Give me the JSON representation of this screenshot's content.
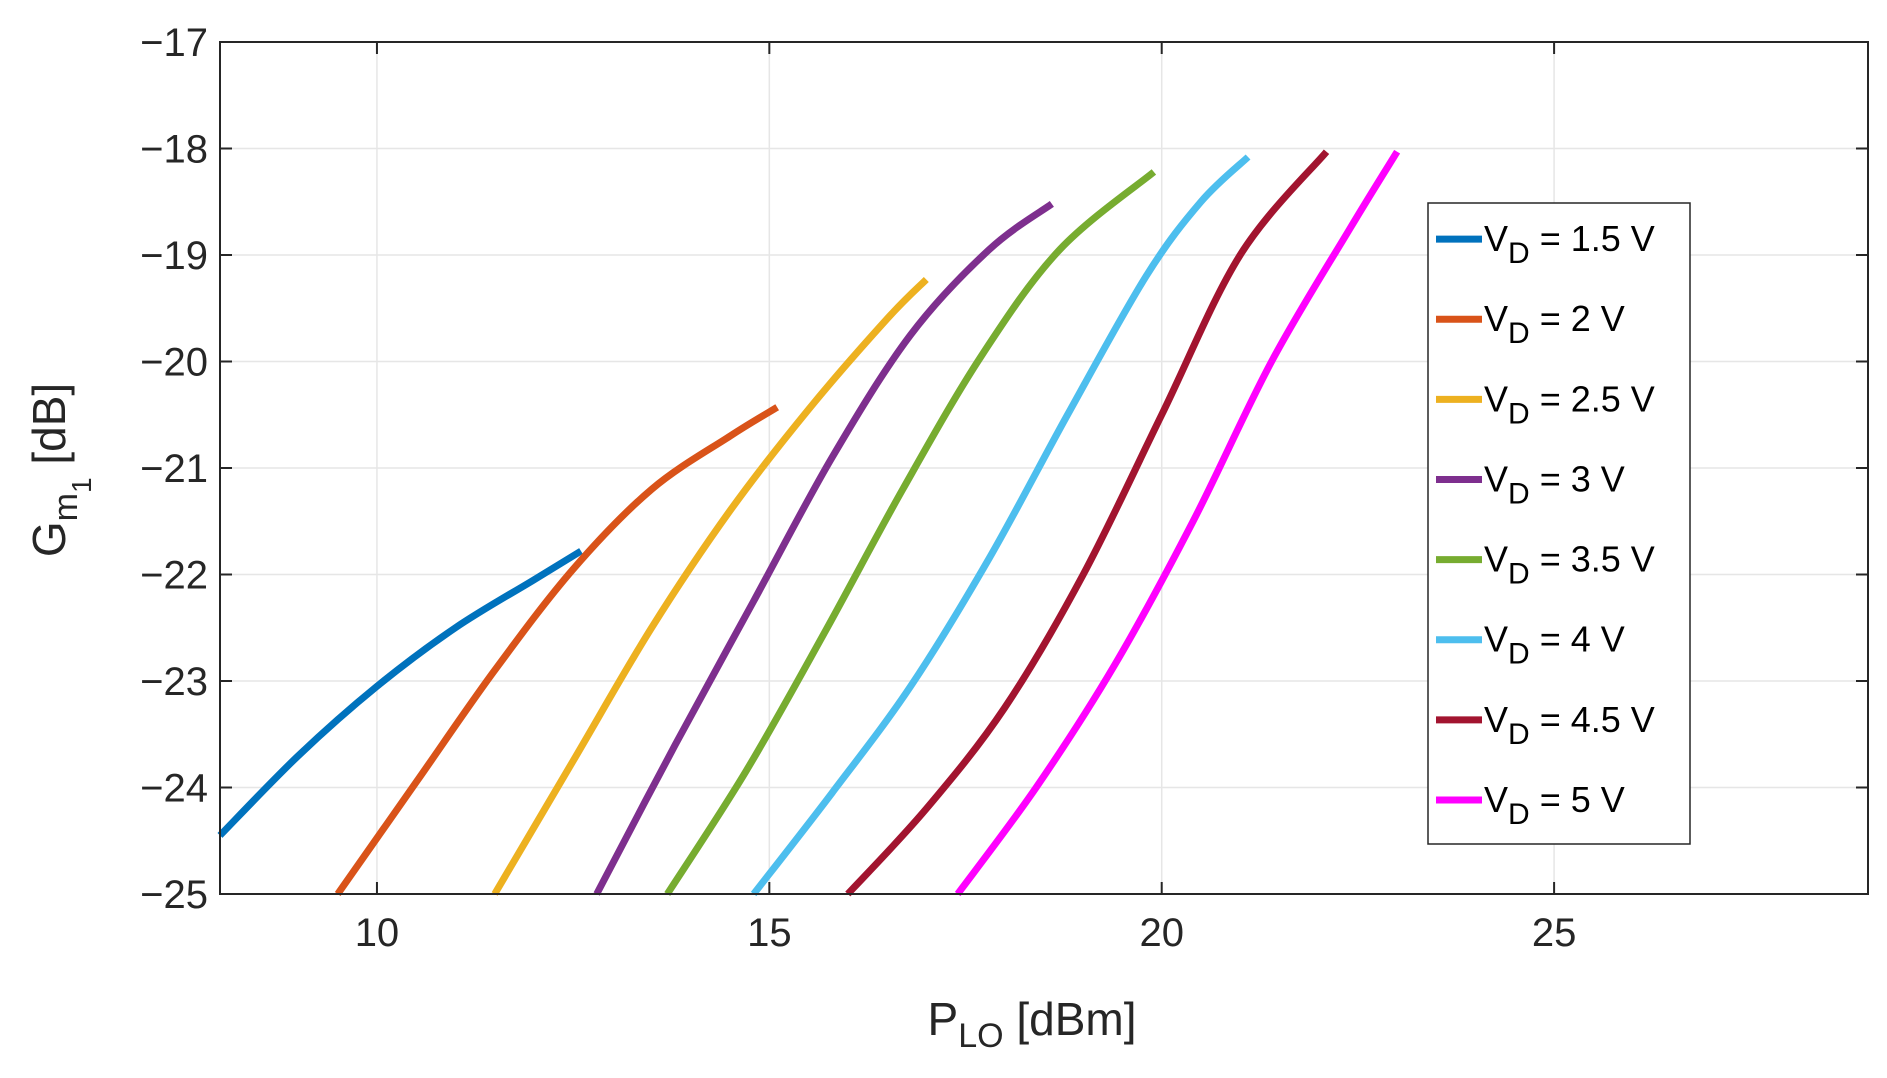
{
  "chart_data": {
    "type": "line",
    "title": "",
    "xlabel": {
      "main": "P",
      "sub": "LO",
      "rest": " [dBm]"
    },
    "ylabel": {
      "main": "G",
      "sub": "m",
      "subsub": "1",
      "rest": "  [dB]"
    },
    "xlim": [
      8,
      29
    ],
    "ylim": [
      -25,
      -17
    ],
    "xticks": [
      10,
      15,
      20,
      25
    ],
    "xtick_labels": [
      "10",
      "15",
      "20",
      "25"
    ],
    "yticks": [
      -25,
      -24,
      -23,
      -22,
      -21,
      -20,
      -19,
      -18,
      -17
    ],
    "ytick_labels": [
      "−25",
      "−24",
      "−23",
      "−22",
      "−21",
      "−20",
      "−19",
      "−18",
      "−17"
    ],
    "grid": true,
    "legend_position": "right",
    "series": [
      {
        "name": "1.5 V",
        "label_main": "V",
        "label_sub": "D",
        "label_rest": " = 1.5 V",
        "color": "#0072BD",
        "x": [
          8.0,
          9.0,
          10.0,
          11.0,
          12.0,
          12.6
        ],
        "y": [
          -24.45,
          -23.7,
          -23.05,
          -22.5,
          -22.05,
          -21.78
        ]
      },
      {
        "name": "2 V",
        "label_main": "V",
        "label_sub": "D",
        "label_rest": " = 2 V",
        "color": "#D95319",
        "x": [
          9.5,
          10.5,
          11.5,
          12.5,
          13.5,
          14.5,
          15.1
        ],
        "y": [
          -25.0,
          -23.95,
          -22.9,
          -21.95,
          -21.2,
          -20.7,
          -20.43
        ]
      },
      {
        "name": "2.5 V",
        "label_main": "V",
        "label_sub": "D",
        "label_rest": " = 2.5 V",
        "color": "#EDB120",
        "x": [
          11.5,
          12.5,
          13.5,
          14.5,
          15.5,
          16.5,
          17.0
        ],
        "y": [
          -25.0,
          -23.75,
          -22.5,
          -21.4,
          -20.45,
          -19.6,
          -19.23
        ]
      },
      {
        "name": "3 V",
        "label_main": "V",
        "label_sub": "D",
        "label_rest": " = 3 V",
        "color": "#7E2F8E",
        "x": [
          12.8,
          13.8,
          14.8,
          15.8,
          16.8,
          17.8,
          18.6
        ],
        "y": [
          -25.0,
          -23.6,
          -22.25,
          -20.9,
          -19.75,
          -18.95,
          -18.52
        ]
      },
      {
        "name": "3.5 V",
        "label_main": "V",
        "label_sub": "D",
        "label_rest": " = 3.5 V",
        "color": "#77AC30",
        "x": [
          13.7,
          14.7,
          15.7,
          16.7,
          17.7,
          18.7,
          19.9
        ],
        "y": [
          -25.0,
          -23.85,
          -22.55,
          -21.2,
          -19.95,
          -18.95,
          -18.22
        ]
      },
      {
        "name": "4 V",
        "label_main": "V",
        "label_sub": "D",
        "label_rest": " = 4 V",
        "color": "#4DBEEE",
        "x": [
          14.8,
          15.8,
          16.8,
          17.8,
          18.8,
          19.8,
          20.5,
          21.1
        ],
        "y": [
          -25.0,
          -24.05,
          -23.05,
          -21.85,
          -20.5,
          -19.2,
          -18.5,
          -18.08
        ]
      },
      {
        "name": "4.5 V",
        "label_main": "V",
        "label_sub": "D",
        "label_rest": " = 4.5 V",
        "color": "#A2142F",
        "x": [
          16.0,
          17.0,
          18.0,
          19.0,
          20.0,
          21.0,
          22.1
        ],
        "y": [
          -25.0,
          -24.2,
          -23.25,
          -22.0,
          -20.5,
          -19.0,
          -18.03
        ]
      },
      {
        "name": "5 V",
        "label_main": "V",
        "label_sub": "D",
        "label_rest": " = 5 V",
        "color": "#FF00FF",
        "x": [
          17.4,
          18.4,
          19.4,
          20.4,
          21.4,
          22.4,
          23.0
        ],
        "y": [
          -25.0,
          -24.0,
          -22.85,
          -21.5,
          -20.0,
          -18.75,
          -18.03
        ]
      }
    ]
  }
}
